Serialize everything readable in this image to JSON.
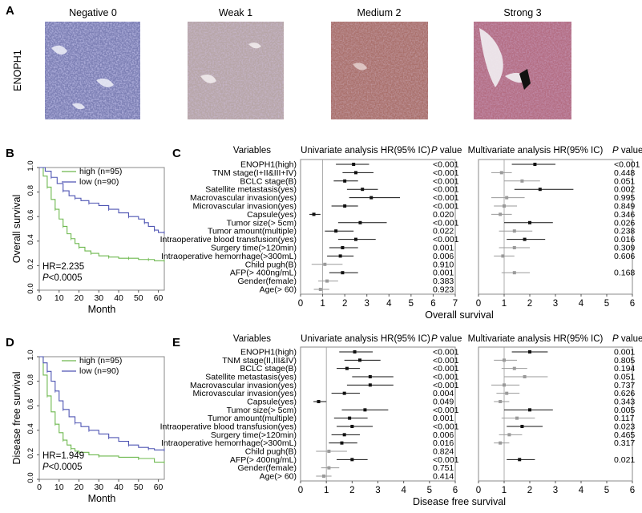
{
  "panel_labels": {
    "a": "A",
    "b": "B",
    "c": "C",
    "d": "D",
    "e": "E"
  },
  "ihc": {
    "row_label": "ENOPH1",
    "grades": [
      "Negative 0",
      "Weak 1",
      "Medium 2",
      "Strong 3"
    ],
    "stain_colors": [
      "#7c7fb4",
      "#b7a6a8",
      "#a9706b",
      "#b36d82"
    ]
  },
  "colors": {
    "high": "#6db84e",
    "low": "#4f55b3",
    "significant": "#111111",
    "nonsignificant": "#9a9a9a",
    "frame": "#888888"
  },
  "chart_data": [
    {
      "id": "km_os",
      "type": "line",
      "ylabel": "Overall survival",
      "xlabel": "Month",
      "xlim": [
        0,
        63
      ],
      "ylim": [
        0,
        1.0
      ],
      "xticks": [
        "0",
        "10",
        "20",
        "30",
        "40",
        "50",
        "60"
      ],
      "yticks": [
        "0.0",
        "0.2",
        "0.4",
        "0.6",
        "0.8",
        "1.0"
      ],
      "legend": [
        "high (n=95)",
        "low (n=90)"
      ],
      "hr_text": "HR=2.235",
      "p_label": "P",
      "p_text": "<0.0005",
      "series": [
        {
          "name": "high (n=95)",
          "x": [
            0,
            2,
            4,
            6,
            8,
            10,
            12,
            14,
            16,
            18,
            20,
            23,
            26,
            30,
            35,
            40,
            45,
            50,
            55,
            58,
            63
          ],
          "y": [
            1.0,
            0.93,
            0.84,
            0.74,
            0.66,
            0.58,
            0.52,
            0.46,
            0.42,
            0.38,
            0.35,
            0.32,
            0.3,
            0.28,
            0.27,
            0.26,
            0.26,
            0.25,
            0.25,
            0.24,
            0.24
          ]
        },
        {
          "name": "low (n=90)",
          "x": [
            0,
            3,
            6,
            9,
            12,
            15,
            18,
            21,
            25,
            30,
            35,
            40,
            45,
            50,
            53,
            55,
            58,
            60,
            63
          ],
          "y": [
            1.0,
            0.97,
            0.92,
            0.87,
            0.81,
            0.77,
            0.75,
            0.73,
            0.71,
            0.69,
            0.66,
            0.63,
            0.6,
            0.58,
            0.55,
            0.52,
            0.49,
            0.47,
            0.47
          ]
        }
      ]
    },
    {
      "id": "km_dfs",
      "type": "line",
      "ylabel": "Disease free survival",
      "xlabel": "Month",
      "xlim": [
        0,
        63
      ],
      "ylim": [
        0,
        1.0
      ],
      "xticks": [
        "0",
        "10",
        "20",
        "30",
        "40",
        "50",
        "60"
      ],
      "yticks": [
        "0.0",
        "0.2",
        "0.4",
        "0.6",
        "0.8",
        "1.0"
      ],
      "legend": [
        "high (n=95)",
        "low (n=90)"
      ],
      "hr_text": "HR=1.949",
      "p_label": "P",
      "p_text": "<0.0005",
      "series": [
        {
          "name": "high (n=95)",
          "x": [
            0,
            2,
            4,
            6,
            8,
            10,
            12,
            14,
            16,
            18,
            20,
            25,
            30,
            40,
            50,
            58,
            63
          ],
          "y": [
            1.0,
            0.85,
            0.68,
            0.55,
            0.45,
            0.38,
            0.32,
            0.28,
            0.25,
            0.23,
            0.22,
            0.2,
            0.19,
            0.18,
            0.17,
            0.14,
            0.14
          ]
        },
        {
          "name": "low (n=90)",
          "x": [
            0,
            2,
            4,
            6,
            8,
            10,
            12,
            15,
            18,
            21,
            25,
            30,
            35,
            40,
            45,
            50,
            55,
            58,
            63
          ],
          "y": [
            1.0,
            0.95,
            0.88,
            0.8,
            0.72,
            0.64,
            0.57,
            0.51,
            0.46,
            0.43,
            0.4,
            0.37,
            0.34,
            0.31,
            0.28,
            0.26,
            0.25,
            0.24,
            0.24
          ]
        }
      ]
    },
    {
      "id": "forest_c",
      "type": "scatter",
      "xlabel": "Overall survival",
      "headers": {
        "variables": "Variables",
        "univariate": "Univariate analysis HR(95% IC)",
        "multivariate": "Multivariate analysis HR(95% IC)",
        "pvalue_letter": "P",
        "pvalue_rest": " value"
      },
      "uni_xticks": [
        "0",
        "1",
        "2",
        "3",
        "4",
        "5",
        "6",
        "7"
      ],
      "uni_xmax": 7,
      "multi_xticks": [
        "0",
        "1",
        "2",
        "3",
        "4",
        "5",
        "6"
      ],
      "multi_xmax": 6,
      "rows": [
        {
          "label": "ENOPH1(high)",
          "uni": [
            2.4,
            1.6,
            3.1
          ],
          "up": "<0.001",
          "multi": [
            2.2,
            1.3,
            3.0
          ],
          "mp": "<0.001"
        },
        {
          "label": "TNM stage(I+II&III+IV)",
          "uni": [
            2.5,
            1.9,
            3.3
          ],
          "up": "<0.001",
          "multi": [
            0.9,
            0.5,
            1.3
          ],
          "mp": "0.448"
        },
        {
          "label": "BCLC stage(B)",
          "uni": [
            2.0,
            1.5,
            2.6
          ],
          "up": "<0.001",
          "multi": [
            1.7,
            1.0,
            2.4
          ],
          "mp": "0.051"
        },
        {
          "label": "Satellite metastasis(yes)",
          "uni": [
            2.8,
            2.1,
            3.5
          ],
          "up": "<0.001",
          "multi": [
            2.4,
            1.4,
            3.7
          ],
          "mp": "0.002"
        },
        {
          "label": "Macrovascular invasion(yes)",
          "uni": [
            3.2,
            2.2,
            4.5
          ],
          "up": "<0.001",
          "multi": [
            1.1,
            0.5,
            1.8
          ],
          "mp": "0.995"
        },
        {
          "label": "Microvascular invasion(yes)",
          "uni": [
            2.0,
            1.4,
            2.6
          ],
          "up": "<0.001",
          "multi": [
            1.0,
            0.6,
            1.5
          ],
          "mp": "0.849"
        },
        {
          "label": "Capsule(yes)",
          "uni": [
            0.6,
            0.4,
            0.9
          ],
          "up": "0.020",
          "multi": [
            0.85,
            0.5,
            1.3
          ],
          "mp": "0.346"
        },
        {
          "label": "Tumor size(> 5cm)",
          "uni": [
            2.7,
            1.7,
            3.9
          ],
          "up": "<0.001",
          "multi": [
            2.0,
            1.0,
            2.9
          ],
          "mp": "0.026"
        },
        {
          "label": "Tumor amount(multiple)",
          "uni": [
            1.6,
            1.1,
            2.4
          ],
          "up": "0.022",
          "multi": [
            1.4,
            0.8,
            2.1
          ],
          "mp": "0.238"
        },
        {
          "label": "Intraoperative blood transfusion(yes)",
          "uni": [
            2.5,
            1.7,
            3.4
          ],
          "up": "<0.001",
          "multi": [
            1.8,
            1.1,
            2.6
          ],
          "mp": "0.016"
        },
        {
          "label": "Surgery time(>120min)",
          "uni": [
            1.9,
            1.3,
            2.6
          ],
          "up": "0.001",
          "multi": [
            1.4,
            0.8,
            2.0
          ],
          "mp": "0.309"
        },
        {
          "label": "Intraoperative hemorrhage(>300mL)",
          "uni": [
            1.8,
            1.2,
            2.4
          ],
          "up": "0.006",
          "multi": [
            0.95,
            0.6,
            1.4
          ],
          "mp": "0.606"
        },
        {
          "label": "Child pugh(B)",
          "uni": [
            1.1,
            0.5,
            1.9
          ],
          "up": "0.910",
          "multi": null,
          "mp": ""
        },
        {
          "label": "AFP(> 400ng/mL)",
          "uni": [
            1.9,
            1.3,
            2.6
          ],
          "up": "0.001",
          "multi": [
            1.4,
            0.9,
            2.0
          ],
          "mp": "0.168"
        },
        {
          "label": "Gender(female)",
          "uni": [
            1.2,
            0.8,
            1.7
          ],
          "up": "0.383",
          "multi": null,
          "mp": ""
        },
        {
          "label": "Age(> 60)",
          "uni": [
            0.9,
            0.6,
            1.3
          ],
          "up": "0.923",
          "multi": null,
          "mp": ""
        }
      ]
    },
    {
      "id": "forest_e",
      "type": "scatter",
      "xlabel": "Disease free survival",
      "headers": {
        "variables": "Variables",
        "univariate": "Univariate analysis HR(95% IC)",
        "multivariate": "Multivariate analysis HR(95% IC)",
        "pvalue_letter": "P",
        "pvalue_rest": " value"
      },
      "uni_xticks": [
        "0",
        "1",
        "2",
        "3",
        "4",
        "5",
        "6"
      ],
      "uni_xmax": 6,
      "multi_xticks": [
        "0",
        "1",
        "2",
        "3",
        "4",
        "5",
        "6"
      ],
      "multi_xmax": 6,
      "rows": [
        {
          "label": "ENOPH1(high)",
          "uni": [
            2.1,
            1.5,
            2.8
          ],
          "up": "<0.001",
          "multi": [
            2.0,
            1.3,
            2.7
          ],
          "mp": "0.001"
        },
        {
          "label": "TNM stage(II,III&IV)",
          "uni": [
            2.3,
            1.7,
            3.1
          ],
          "up": "<0.001",
          "multi": [
            1.0,
            0.6,
            1.5
          ],
          "mp": "0.805"
        },
        {
          "label": "BCLC stage(B)",
          "uni": [
            1.8,
            1.4,
            2.3
          ],
          "up": "<0.001",
          "multi": [
            1.4,
            0.9,
            1.9
          ],
          "mp": "0.194"
        },
        {
          "label": "Satellite metastasis(yes)",
          "uni": [
            2.7,
            2.0,
            3.6
          ],
          "up": "<0.001",
          "multi": [
            1.8,
            1.0,
            2.7
          ],
          "mp": "0.051"
        },
        {
          "label": "Macrovascular invasion(yes)",
          "uni": [
            2.7,
            1.8,
            3.6
          ],
          "up": "<0.001",
          "multi": [
            1.0,
            0.5,
            1.6
          ],
          "mp": "0.737"
        },
        {
          "label": "Microvascular invasion(yes)",
          "uni": [
            1.7,
            1.2,
            2.3
          ],
          "up": "0.004",
          "multi": [
            1.1,
            0.7,
            1.6
          ],
          "mp": "0.626"
        },
        {
          "label": "Capsule(yes)",
          "uni": [
            0.7,
            0.5,
            1.0
          ],
          "up": "0.049",
          "multi": [
            0.85,
            0.6,
            1.2
          ],
          "mp": "0.343"
        },
        {
          "label": "Tumor size(> 5cm)",
          "uni": [
            2.5,
            1.6,
            3.4
          ],
          "up": "<0.001",
          "multi": [
            2.0,
            1.0,
            2.9
          ],
          "mp": "0.005"
        },
        {
          "label": "Tumor amount(multiple)",
          "uni": [
            1.9,
            1.3,
            2.6
          ],
          "up": "0.001",
          "multi": [
            1.5,
            0.9,
            2.2
          ],
          "mp": "0.117"
        },
        {
          "label": "Intraoperative blood transfusion(yes)",
          "uni": [
            2.0,
            1.4,
            2.8
          ],
          "up": "<0.001",
          "multi": [
            1.7,
            1.1,
            2.5
          ],
          "mp": "0.023"
        },
        {
          "label": "Surgery time(>120min)",
          "uni": [
            1.7,
            1.2,
            2.3
          ],
          "up": "0.006",
          "multi": [
            1.2,
            0.8,
            1.7
          ],
          "mp": "0.465"
        },
        {
          "label": "Intraoperative hemorrhage(>300mL)",
          "uni": [
            1.6,
            1.1,
            2.2
          ],
          "up": "0.016",
          "multi": [
            0.85,
            0.6,
            1.2
          ],
          "mp": "0.317"
        },
        {
          "label": "Child pugh(B)",
          "uni": [
            1.1,
            0.6,
            1.8
          ],
          "up": "0.824",
          "multi": null,
          "mp": ""
        },
        {
          "label": "AFP(> 400ng/mL)",
          "uni": [
            2.0,
            1.4,
            2.6
          ],
          "up": "<0.001",
          "multi": [
            1.6,
            1.1,
            2.2
          ],
          "mp": "0.021"
        },
        {
          "label": "Gender(female)",
          "uni": [
            1.1,
            0.8,
            1.5
          ],
          "up": "0.751",
          "multi": null,
          "mp": ""
        },
        {
          "label": "Age(> 60)",
          "uni": [
            0.9,
            0.6,
            1.2
          ],
          "up": "0.414",
          "multi": null,
          "mp": ""
        }
      ]
    }
  ]
}
